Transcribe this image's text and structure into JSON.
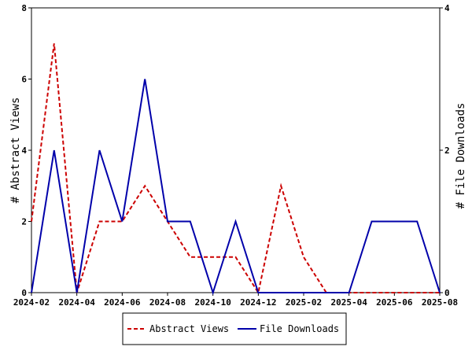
{
  "chart_data": {
    "type": "line",
    "x": [
      "2024-02",
      "2024-03",
      "2024-04",
      "2024-05",
      "2024-06",
      "2024-07",
      "2024-08",
      "2024-09",
      "2024-10",
      "2024-11",
      "2024-12",
      "2025-01",
      "2025-02",
      "2025-03",
      "2025-04",
      "2025-05",
      "2025-06",
      "2025-07",
      "2025-08"
    ],
    "x_tick_labels": [
      "2024-02",
      "2024-04",
      "2024-06",
      "2024-08",
      "2024-10",
      "2024-12",
      "2025-02",
      "2025-04",
      "2025-06",
      "2025-08"
    ],
    "y_left": {
      "label": "# Abstract Views",
      "ylim": [
        0,
        8
      ],
      "ticks": [
        "0",
        "2",
        "4",
        "6",
        "8"
      ]
    },
    "y_right": {
      "label": "# File Downloads",
      "ylim": [
        0,
        4
      ],
      "ticks": [
        "0",
        "2",
        "4"
      ]
    },
    "grid": false,
    "legend_position": "bottom-center",
    "series": [
      {
        "name": "Abstract Views",
        "axis": "left",
        "color": "#cc0000",
        "dash": "dashed",
        "values": [
          2,
          7,
          0,
          2,
          2,
          3,
          2,
          1,
          1,
          1,
          0,
          3,
          1,
          0,
          0,
          0,
          0,
          0,
          0
        ]
      },
      {
        "name": "File Downloads",
        "axis": "right",
        "color": "#0000aa",
        "dash": "solid",
        "values": [
          0,
          2,
          0,
          2,
          1,
          3,
          1,
          1,
          0,
          1,
          0,
          0,
          0,
          0,
          0,
          1,
          1,
          1,
          0
        ]
      }
    ]
  }
}
